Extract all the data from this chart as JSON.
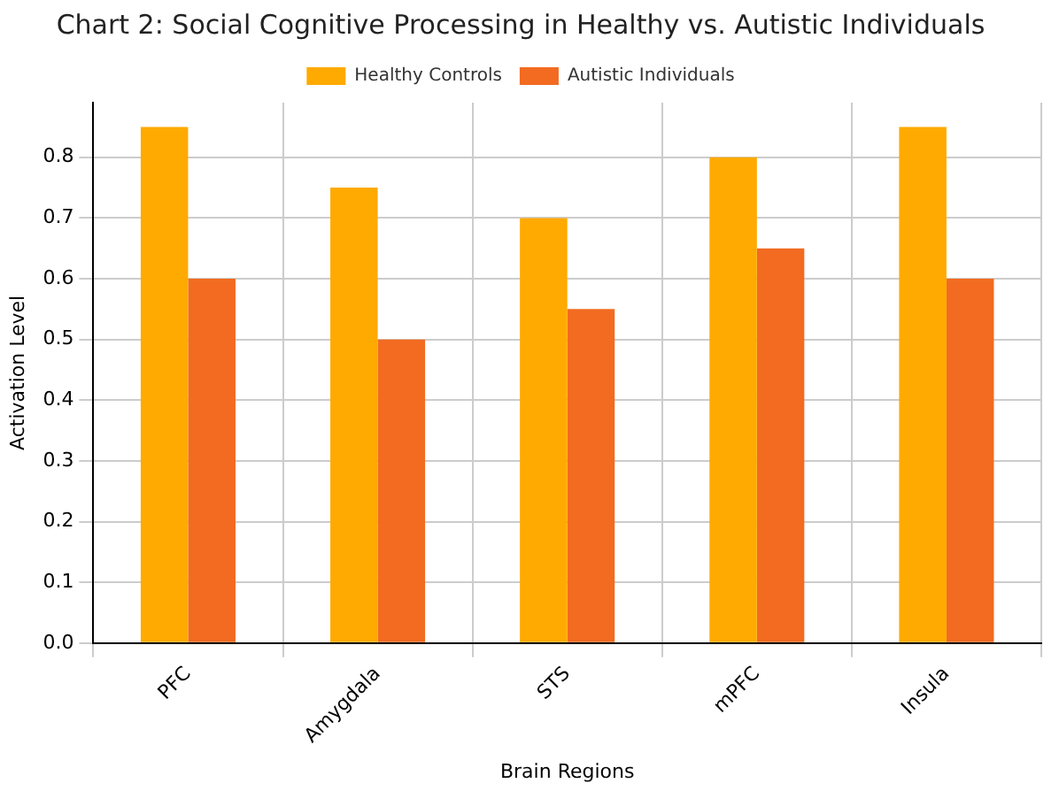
{
  "chart_data": {
    "type": "bar",
    "title": "Chart 2: Social Cognitive Processing in Healthy vs. Autistic Individuals",
    "xlabel": "Brain Regions",
    "ylabel": "Activation Level",
    "categories": [
      "PFC",
      "Amygdala",
      "STS",
      "mPFC",
      "Insula"
    ],
    "series": [
      {
        "name": "Healthy Controls",
        "color": "#ffaa00",
        "values": [
          0.85,
          0.75,
          0.7,
          0.8,
          0.85
        ]
      },
      {
        "name": "Autistic Individuals",
        "color": "#f26b21",
        "values": [
          0.6,
          0.5,
          0.55,
          0.65,
          0.6
        ]
      }
    ],
    "ylim": [
      0,
      0.89
    ],
    "yticks": [
      {
        "value": 0,
        "label": "0.0"
      },
      {
        "value": 0.1,
        "label": "0.1"
      },
      {
        "value": 0.2,
        "label": "0.2"
      },
      {
        "value": 0.3,
        "label": "0.3"
      },
      {
        "value": 0.4,
        "label": "0.4"
      },
      {
        "value": 0.5,
        "label": "0.5"
      },
      {
        "value": 0.6,
        "label": "0.6"
      },
      {
        "value": 0.7,
        "label": "0.7"
      },
      {
        "value": 0.8,
        "label": "0.8"
      }
    ],
    "grid": true,
    "legend": "top"
  }
}
